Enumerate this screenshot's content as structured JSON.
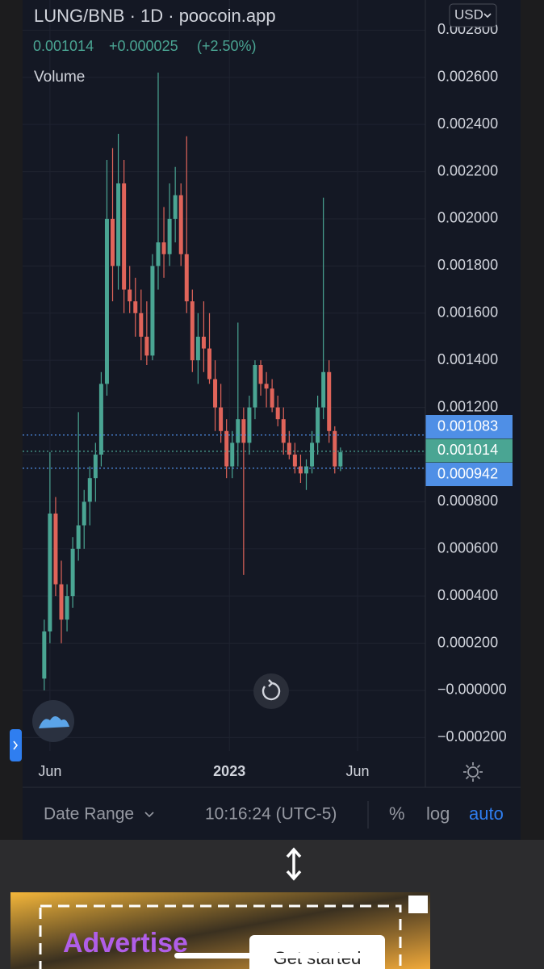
{
  "chart_data": {
    "type": "candlestick",
    "title": "LUNG/BNB · 1D · poocoin.app",
    "legend_values": [
      "0.001014",
      "+0.000025",
      "(+2.50%)"
    ],
    "volume_label": "Volume",
    "currency": "USD",
    "categories": [
      null,
      null,
      null,
      null,
      null,
      null,
      null,
      null,
      null,
      null,
      null,
      null,
      null,
      null,
      null,
      null,
      null,
      null,
      null,
      null,
      null,
      null,
      null,
      null,
      null,
      null,
      null,
      null,
      null,
      null,
      null,
      null,
      null,
      null,
      null,
      null,
      null,
      null,
      null,
      null,
      null,
      null,
      null,
      null,
      null,
      null,
      null,
      null,
      null,
      null,
      null,
      null,
      null
    ],
    "open": [
      5e-05,
      0.00025,
      0.00075,
      0.00045,
      0.0003,
      0.0004,
      0.0006,
      0.0007,
      0.0008,
      0.0009,
      0.001,
      0.0013,
      0.002,
      0.0018,
      0.00215,
      0.0017,
      0.00165,
      0.0016,
      0.0015,
      0.00142,
      0.0018,
      0.0019,
      0.00185,
      0.002,
      0.0021,
      0.00185,
      0.00165,
      0.0014,
      0.0015,
      0.00145,
      0.00132,
      0.0012,
      0.0011,
      0.00095,
      0.00105,
      0.00115,
      0.00105,
      0.0012,
      0.00138,
      0.0013,
      0.00128,
      0.0012,
      0.00115,
      0.00105,
      0.001,
      0.00095,
      0.00092,
      0.00095,
      0.00105,
      0.0012,
      0.00135,
      0.0011,
      0.00095
    ],
    "high": [
      0.0003,
      0.00101,
      0.00082,
      0.00055,
      0.00045,
      0.00065,
      0.00118,
      0.00085,
      0.00095,
      0.00105,
      0.00135,
      0.00225,
      0.0023,
      0.00236,
      0.00225,
      0.0018,
      0.00175,
      0.0017,
      0.00165,
      0.00185,
      0.00262,
      0.00205,
      0.00215,
      0.00222,
      0.00215,
      0.00235,
      0.0017,
      0.0016,
      0.00165,
      0.0016,
      0.0014,
      0.0013,
      0.00115,
      0.0011,
      0.00156,
      0.0012,
      0.00125,
      0.0014,
      0.0014,
      0.00135,
      0.00132,
      0.00125,
      0.0012,
      0.0011,
      0.00105,
      0.001,
      0.00098,
      0.0011,
      0.00125,
      0.00209,
      0.0014,
      0.00112,
      0.00103
    ],
    "low": [
      0.0,
      0.0002,
      0.0004,
      0.0002,
      0.00025,
      0.00035,
      0.00055,
      0.0006,
      0.0007,
      0.0008,
      0.00095,
      0.00125,
      0.00165,
      0.0017,
      0.0016,
      0.0016,
      0.0015,
      0.0014,
      0.00138,
      0.0014,
      0.0017,
      0.00175,
      0.0018,
      0.0019,
      0.0018,
      0.0016,
      0.00135,
      0.0013,
      0.00135,
      0.0013,
      0.0011,
      0.00105,
      0.0009,
      0.0009,
      0.00095,
      0.00049,
      0.001,
      0.00115,
      0.00125,
      0.0012,
      0.00118,
      0.00112,
      0.001,
      0.00098,
      0.00092,
      0.00088,
      0.00085,
      0.00092,
      0.001,
      0.00115,
      0.00105,
      0.00092,
      0.00093
    ],
    "close": [
      0.00025,
      0.00075,
      0.00045,
      0.0003,
      0.0004,
      0.0006,
      0.0007,
      0.0008,
      0.0009,
      0.001,
      0.0013,
      0.002,
      0.0018,
      0.00215,
      0.0017,
      0.00165,
      0.0016,
      0.0015,
      0.00142,
      0.0018,
      0.0019,
      0.00185,
      0.002,
      0.0021,
      0.00185,
      0.00165,
      0.0014,
      0.0015,
      0.00145,
      0.00132,
      0.0012,
      0.0011,
      0.00095,
      0.00105,
      0.00115,
      0.00105,
      0.0012,
      0.00138,
      0.0013,
      0.00128,
      0.0012,
      0.00115,
      0.00105,
      0.001,
      0.00095,
      0.00092,
      0.00095,
      0.00105,
      0.0012,
      0.00135,
      0.0011,
      0.00095,
      0.00101
    ],
    "up_color": "#4aa593",
    "down_color": "#e0645a",
    "ylim": [
      -0.000257,
      0.002928
    ],
    "yticks": [
      {
        "value": 0.0028,
        "label": "0.002800"
      },
      {
        "value": 0.0026,
        "label": "0.002600"
      },
      {
        "value": 0.0024,
        "label": "0.002400"
      },
      {
        "value": 0.0022,
        "label": "0.002200"
      },
      {
        "value": 0.002,
        "label": "0.002000"
      },
      {
        "value": 0.0018,
        "label": "0.001800"
      },
      {
        "value": 0.0016,
        "label": "0.001600"
      },
      {
        "value": 0.0014,
        "label": "0.001400"
      },
      {
        "value": 0.0012,
        "label": "0.001200"
      },
      {
        "value": 0.001,
        "label": "0.001000"
      },
      {
        "value": 0.0008,
        "label": "0.000800"
      },
      {
        "value": 0.0006,
        "label": "0.000600"
      },
      {
        "value": 0.0004,
        "label": "0.000400"
      },
      {
        "value": 0.0002,
        "label": "0.000200"
      },
      {
        "value": 0,
        "label": "−0.000000"
      },
      {
        "value": -0.0002,
        "label": "−0.000200"
      }
    ],
    "xlim": [
      -3.8,
      66.9
    ],
    "xticks": [
      {
        "value": 1,
        "label": "Jun"
      },
      {
        "value": 32.5,
        "label": "2023"
      },
      {
        "value": 55,
        "label": "Jun"
      }
    ],
    "price_lines": [
      {
        "value": 0.001083,
        "color": "#4f8fe6"
      },
      {
        "value": 0.001014,
        "color": "#4aa593"
      },
      {
        "value": 0.000942,
        "color": "#4f8fe6"
      }
    ],
    "grid": true,
    "log_scale": false
  },
  "toolbar": {
    "date_range": "Date Range",
    "time": "10:16:24 (UTC-5)",
    "percent": "%",
    "log": "log",
    "auto": "auto"
  },
  "ad": {
    "headline": "Advertise",
    "button": "Get started"
  }
}
